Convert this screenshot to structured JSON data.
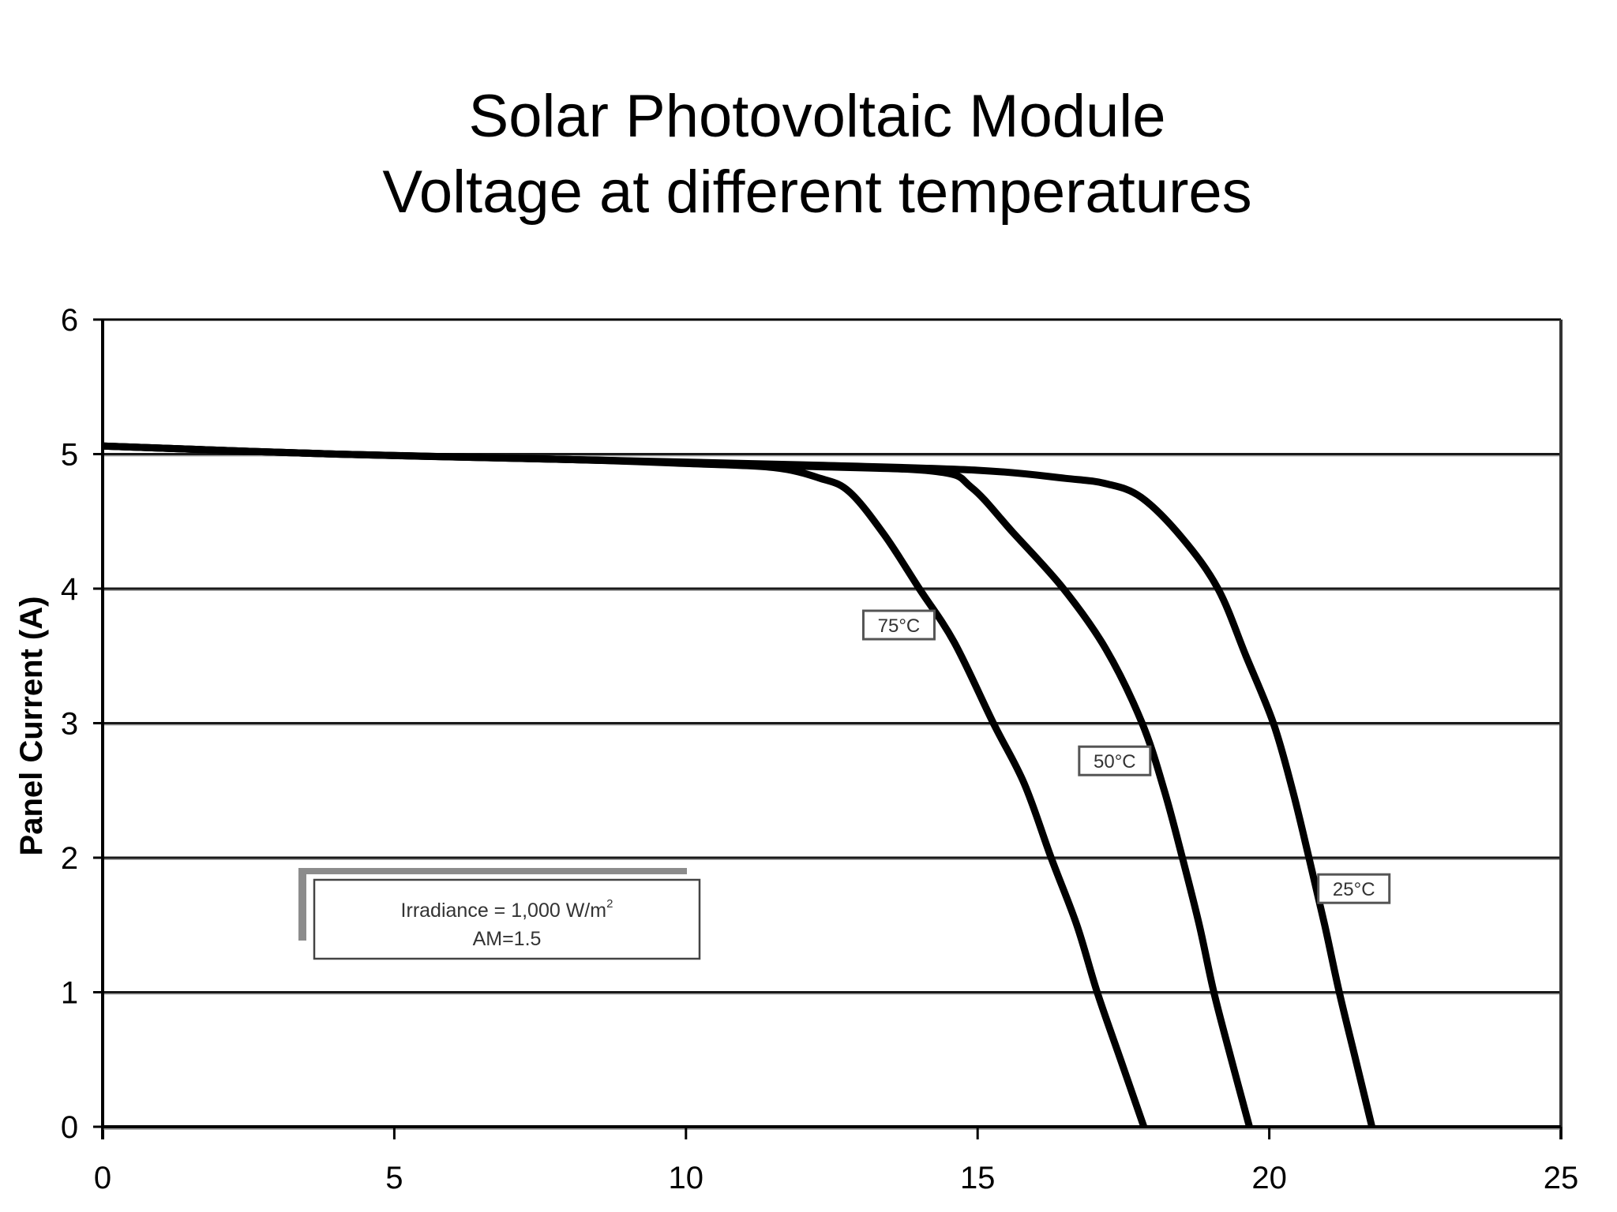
{
  "chart_data": {
    "type": "line",
    "title": "Solar Photovoltaic Module\nVoltage at different temperatures",
    "title_lines": [
      "Solar Photovoltaic Module",
      "Voltage at different temperatures"
    ],
    "xlabel": "",
    "ylabel": "Panel Current (A)",
    "xlim": [
      0,
      25
    ],
    "ylim": [
      0,
      6
    ],
    "x_ticks": [
      0,
      5,
      10,
      15,
      20,
      25
    ],
    "y_ticks": [
      0,
      1,
      2,
      3,
      4,
      5,
      6
    ],
    "grid": "horizontal",
    "legend": "none (inline labels)",
    "series": [
      {
        "name": "75°C",
        "label": "75°C",
        "label_pos": {
          "x": 13.65,
          "y": 3.73
        },
        "points": [
          [
            0,
            5.06
          ],
          [
            4,
            5.0
          ],
          [
            8,
            4.96
          ],
          [
            10,
            4.93
          ],
          [
            11.5,
            4.9
          ],
          [
            12.3,
            4.82
          ],
          [
            12.8,
            4.72
          ],
          [
            13.4,
            4.4
          ],
          [
            14.0,
            4.0
          ],
          [
            14.6,
            3.6
          ],
          [
            15.27,
            3.0
          ],
          [
            15.8,
            2.55
          ],
          [
            16.26,
            2.0
          ],
          [
            16.7,
            1.5
          ],
          [
            17.05,
            1.0
          ],
          [
            17.45,
            0.5
          ],
          [
            17.85,
            0
          ]
        ]
      },
      {
        "name": "50°C",
        "label": "50°C",
        "label_pos": {
          "x": 17.35,
          "y": 2.72
        },
        "points": [
          [
            0,
            5.06
          ],
          [
            4,
            5.0
          ],
          [
            8,
            4.96
          ],
          [
            12,
            4.91
          ],
          [
            14.3,
            4.87
          ],
          [
            14.9,
            4.75
          ],
          [
            15.6,
            4.42
          ],
          [
            16.47,
            4.0
          ],
          [
            17.2,
            3.55
          ],
          [
            17.82,
            3.0
          ],
          [
            18.2,
            2.5
          ],
          [
            18.51,
            2.0
          ],
          [
            18.8,
            1.5
          ],
          [
            19.05,
            1.0
          ],
          [
            19.35,
            0.5
          ],
          [
            19.66,
            0
          ]
        ]
      },
      {
        "name": "25°C",
        "label": "25°C",
        "label_pos": {
          "x": 21.45,
          "y": 1.77
        },
        "points": [
          [
            0,
            5.06
          ],
          [
            4,
            5.0
          ],
          [
            8,
            4.96
          ],
          [
            12,
            4.92
          ],
          [
            15,
            4.88
          ],
          [
            16.5,
            4.82
          ],
          [
            17.2,
            4.78
          ],
          [
            17.8,
            4.68
          ],
          [
            18.5,
            4.38
          ],
          [
            19.12,
            4.0
          ],
          [
            19.6,
            3.5
          ],
          [
            20.07,
            3.0
          ],
          [
            20.4,
            2.5
          ],
          [
            20.68,
            2.0
          ],
          [
            20.95,
            1.5
          ],
          [
            21.2,
            1.0
          ],
          [
            21.48,
            0.5
          ],
          [
            21.76,
            0
          ]
        ]
      }
    ],
    "annotation": {
      "line1": "Irradiance = 1,000 W/m",
      "line1_superscript": "2",
      "line2": "AM=1.5"
    }
  },
  "colors": {
    "curve": "#000000",
    "grid": "#1a1a1a",
    "label_box_border": "#555555",
    "annotation_shadow": "#8c8c8c"
  }
}
